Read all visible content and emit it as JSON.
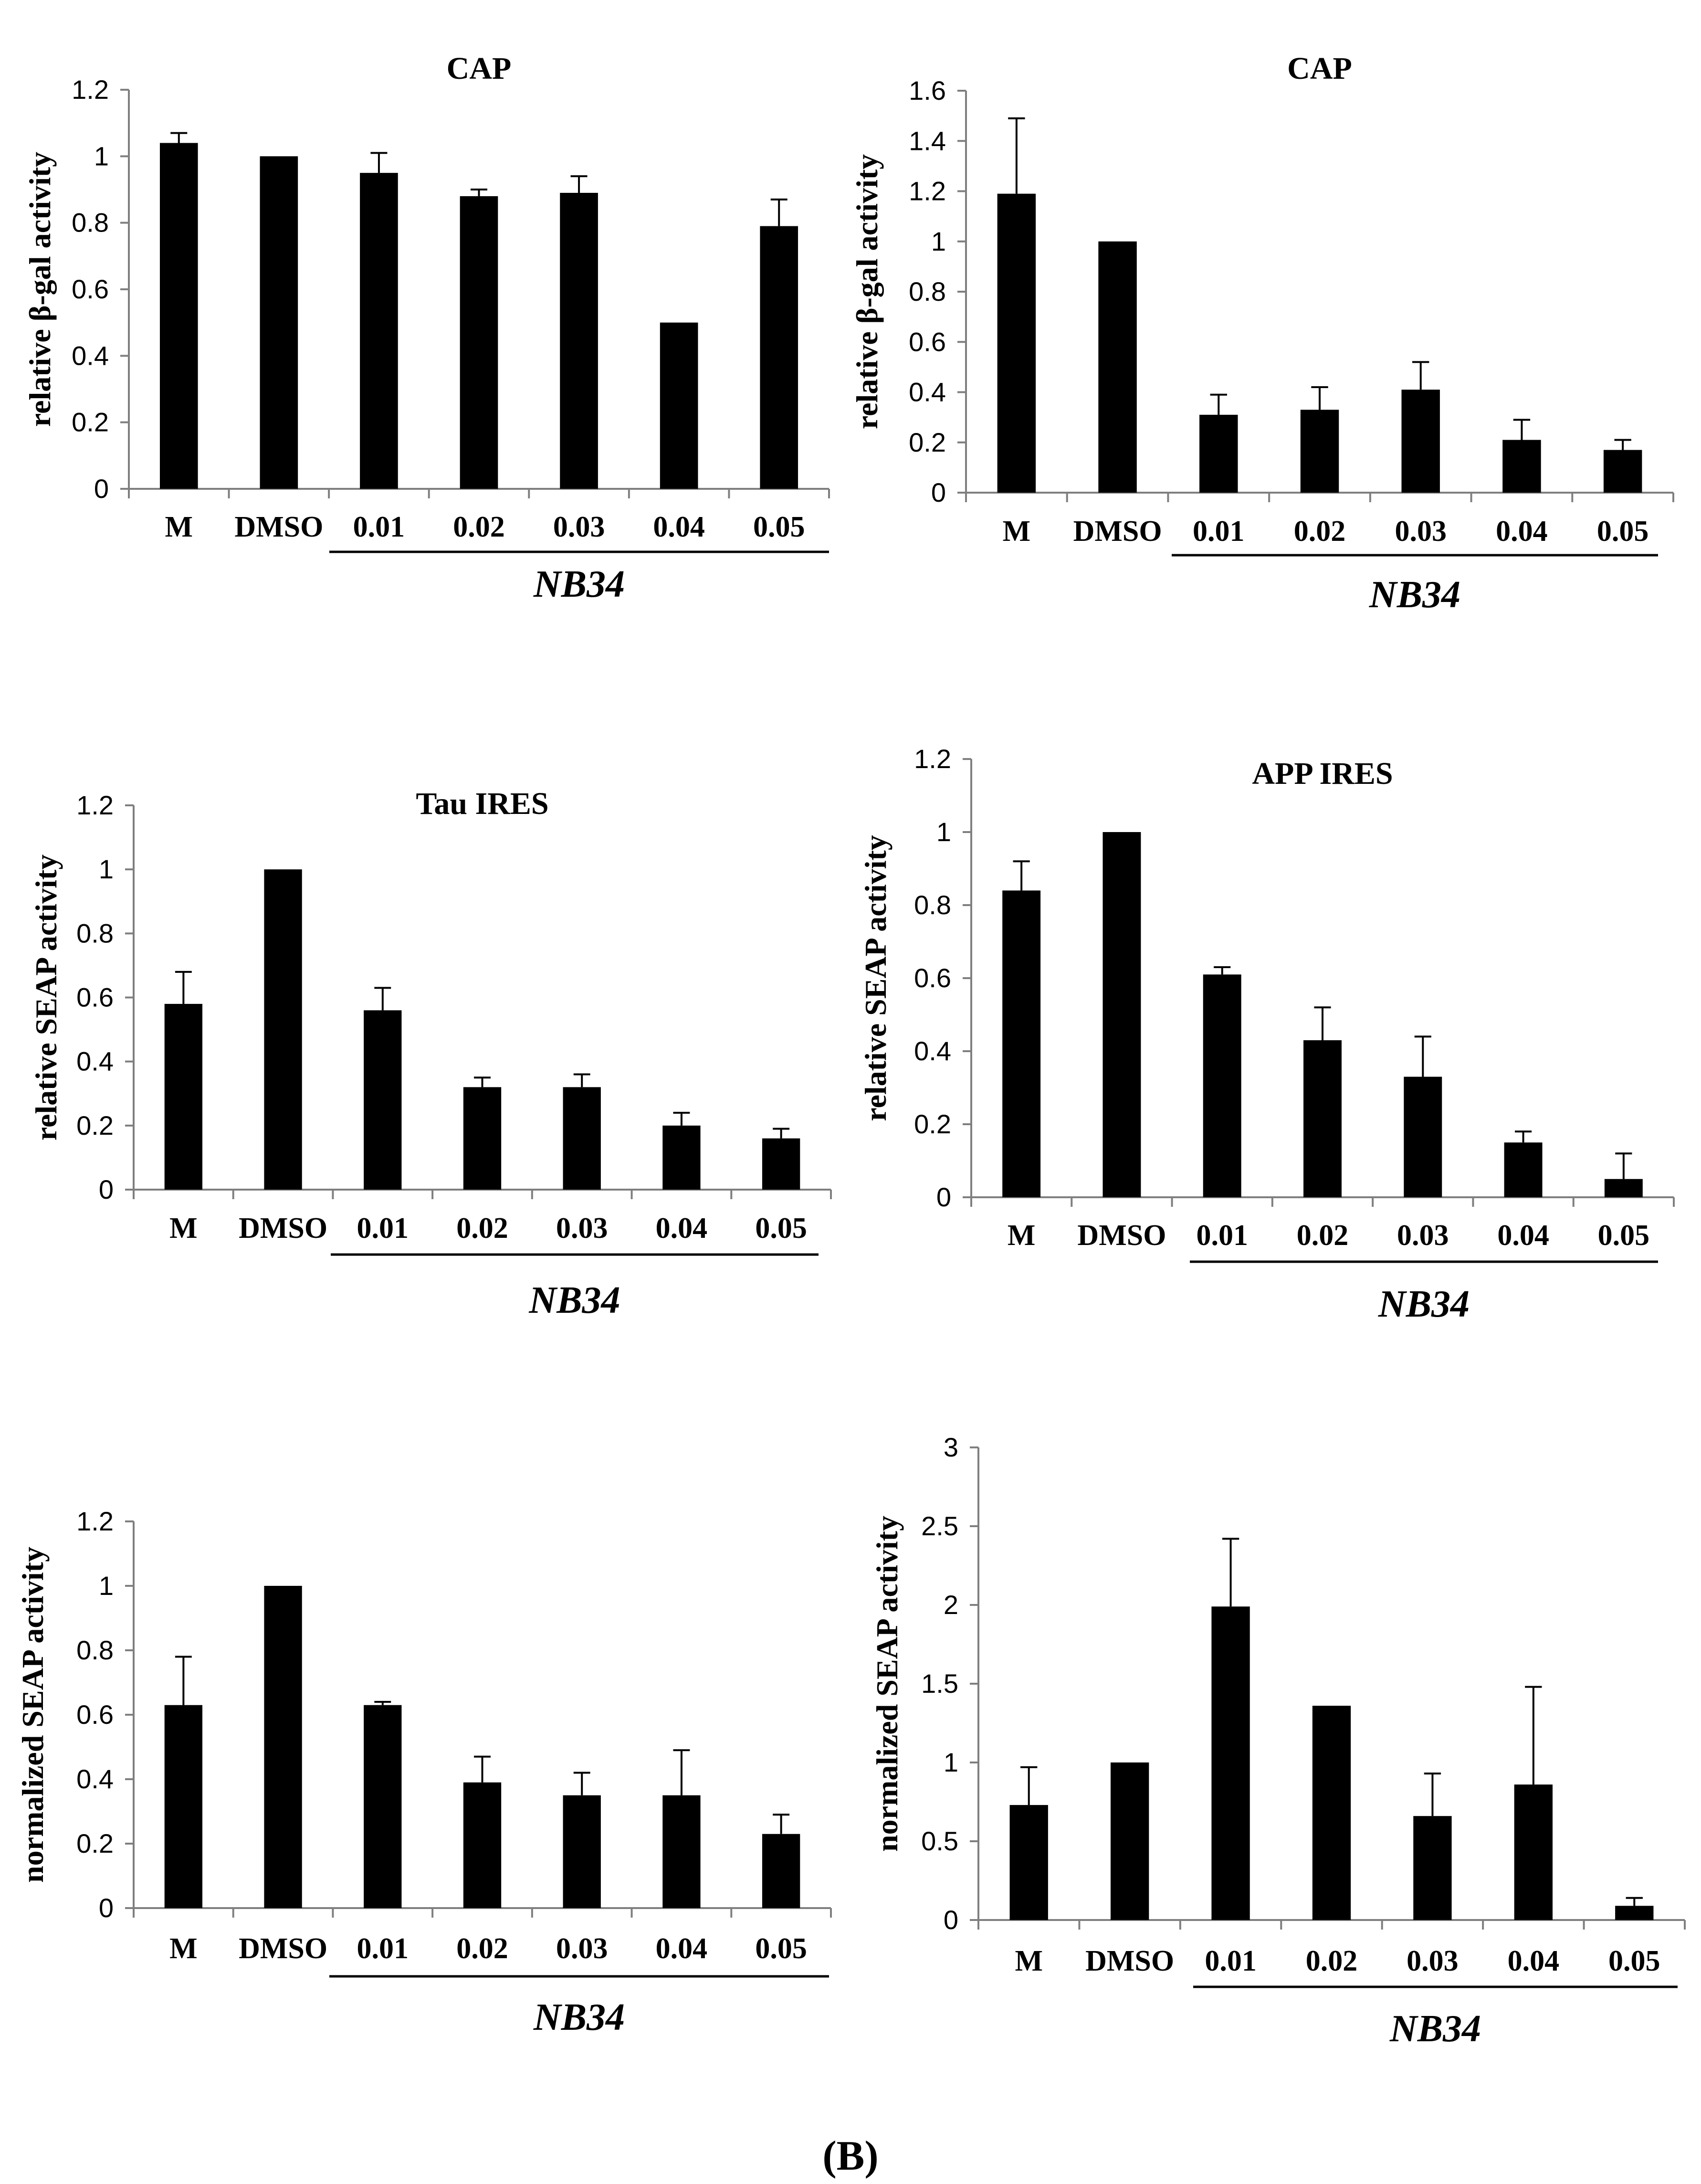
{
  "figure_label": "(B)",
  "chart_data": [
    {
      "type": "bar",
      "title": "CAP",
      "ylabel": "relative β-gal activity",
      "xlabel": "",
      "categories": [
        "M",
        "DMSO",
        "0.01",
        "0.02",
        "0.03",
        "0.04",
        "0.05"
      ],
      "values": [
        1.04,
        1.0,
        0.95,
        0.88,
        0.89,
        0.5,
        0.79
      ],
      "errors": [
        0.03,
        0.0,
        0.06,
        0.02,
        0.05,
        0.0,
        0.08
      ],
      "ylim": [
        0,
        1.2
      ],
      "yticks": [
        "0",
        "0.2",
        "0.4",
        "0.6",
        "0.8",
        "1",
        "1.2"
      ],
      "group_label": "NB34",
      "group_categories": [
        "0.01",
        "0.02",
        "0.03",
        "0.04",
        "0.05"
      ]
    },
    {
      "type": "bar",
      "title": "CAP",
      "ylabel": "relative β-gal activity",
      "xlabel": "",
      "categories": [
        "M",
        "DMSO",
        "0.01",
        "0.02",
        "0.03",
        "0.04",
        "0.05"
      ],
      "values": [
        1.19,
        1.0,
        0.31,
        0.33,
        0.41,
        0.21,
        0.17
      ],
      "errors": [
        0.3,
        0.0,
        0.08,
        0.09,
        0.11,
        0.08,
        0.04
      ],
      "ylim": [
        0,
        1.6
      ],
      "yticks": [
        "0",
        "0.2",
        "0.4",
        "0.6",
        "0.8",
        "1",
        "1.2",
        "1.4",
        "1.6"
      ],
      "group_label": "NB34",
      "group_categories": [
        "0.01",
        "0.02",
        "0.03",
        "0.04",
        "0.05"
      ]
    },
    {
      "type": "bar",
      "title": "Tau IRES",
      "ylabel": "relative SEAP activity",
      "xlabel": "",
      "categories": [
        "M",
        "DMSO",
        "0.01",
        "0.02",
        "0.03",
        "0.04",
        "0.05"
      ],
      "values": [
        0.58,
        1.0,
        0.56,
        0.32,
        0.32,
        0.2,
        0.16
      ],
      "errors": [
        0.1,
        0.0,
        0.07,
        0.03,
        0.04,
        0.04,
        0.03
      ],
      "ylim": [
        0,
        1.2
      ],
      "yticks": [
        "0",
        "0.2",
        "0.4",
        "0.6",
        "0.8",
        "1",
        "1.2"
      ],
      "group_label": "NB34",
      "group_categories": [
        "0.01",
        "0.02",
        "0.03",
        "0.04",
        "0.05"
      ]
    },
    {
      "type": "bar",
      "title": "APP IRES",
      "ylabel": "relative SEAP activity",
      "xlabel": "",
      "categories": [
        "M",
        "DMSO",
        "0.01",
        "0.02",
        "0.03",
        "0.04",
        "0.05"
      ],
      "values": [
        0.84,
        1.0,
        0.61,
        0.43,
        0.33,
        0.15,
        0.05
      ],
      "errors": [
        0.08,
        0.0,
        0.02,
        0.09,
        0.11,
        0.03,
        0.07
      ],
      "ylim": [
        0,
        1.2
      ],
      "yticks": [
        "0",
        "0.2",
        "0.4",
        "0.6",
        "0.8",
        "1",
        "1.2"
      ],
      "group_label": "NB34",
      "group_categories": [
        "0.01",
        "0.02",
        "0.03",
        "0.04",
        "0.05"
      ]
    },
    {
      "type": "bar",
      "title": "",
      "ylabel": "normalized SEAP activity",
      "xlabel": "",
      "categories": [
        "M",
        "DMSO",
        "0.01",
        "0.02",
        "0.03",
        "0.04",
        "0.05"
      ],
      "values": [
        0.63,
        1.0,
        0.63,
        0.39,
        0.35,
        0.35,
        0.23
      ],
      "errors": [
        0.15,
        0.0,
        0.01,
        0.08,
        0.07,
        0.14,
        0.06
      ],
      "ylim": [
        0,
        1.2
      ],
      "yticks": [
        "0",
        "0.2",
        "0.4",
        "0.6",
        "0.8",
        "1",
        "1.2"
      ],
      "group_label": "NB34",
      "group_categories": [
        "0.01",
        "0.02",
        "0.03",
        "0.04",
        "0.05"
      ]
    },
    {
      "type": "bar",
      "title": "",
      "ylabel": "normalized SEAP activity",
      "xlabel": "",
      "categories": [
        "M",
        "DMSO",
        "0.01",
        "0.02",
        "0.03",
        "0.04",
        "0.05"
      ],
      "values": [
        0.73,
        1.0,
        1.99,
        1.36,
        0.66,
        0.86,
        0.09
      ],
      "errors": [
        0.24,
        0.0,
        0.43,
        0.0,
        0.27,
        0.62,
        0.05
      ],
      "ylim": [
        0,
        3
      ],
      "yticks": [
        "0",
        "0.5",
        "1",
        "1.5",
        "2",
        "2.5",
        "3"
      ],
      "group_label": "NB34",
      "group_categories": [
        "0.01",
        "0.02",
        "0.03",
        "0.04",
        "0.05"
      ]
    }
  ]
}
